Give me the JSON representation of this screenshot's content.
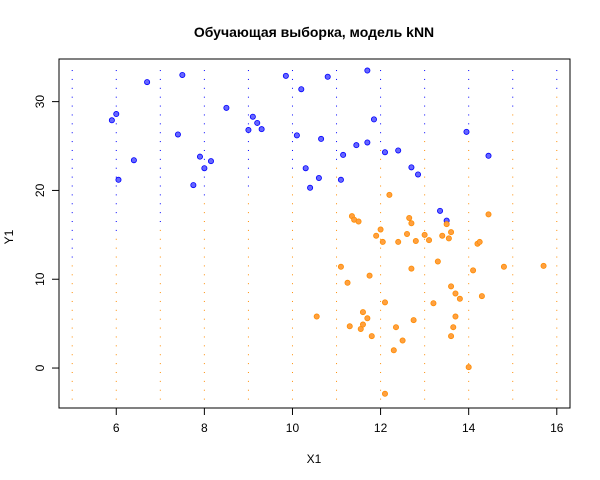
{
  "chart_data": {
    "type": "scatter",
    "title": "Обучающая выборка, модель kNN",
    "xlabel": "X1",
    "ylabel": "Y1",
    "xlim": [
      4.7,
      16.3
    ],
    "ylim": [
      -4.5,
      34.8
    ],
    "xticks": [
      6,
      8,
      10,
      12,
      14,
      16
    ],
    "yticks": [
      0,
      10,
      20,
      30
    ],
    "grid": false,
    "legend": "none",
    "colors": {
      "class_blue": "#0000ff",
      "class_orange": "#ff8c00",
      "point_blue_fill": "#6666ff",
      "point_orange_fill": "#ffa040",
      "frame": "#000000"
    },
    "background_grid": {
      "x": [
        5,
        6,
        7,
        8,
        9,
        10,
        11,
        12,
        13,
        14,
        15,
        16
      ],
      "y_from": -3.5,
      "y_to": 34,
      "y_step": 1,
      "boundary": [
        {
          "x": 5,
          "y": 12
        },
        {
          "x": 6,
          "y": 15
        },
        {
          "x": 7,
          "y": 16
        },
        {
          "x": 8,
          "y": 19
        },
        {
          "x": 9,
          "y": 20
        },
        {
          "x": 10,
          "y": 22
        },
        {
          "x": 11,
          "y": 23
        },
        {
          "x": 12,
          "y": 25
        },
        {
          "x": 13,
          "y": 26
        },
        {
          "x": 14,
          "y": 27
        },
        {
          "x": 15,
          "y": 29
        },
        {
          "x": 16,
          "y": 31
        }
      ]
    },
    "series": [
      {
        "color": "#0000ff",
        "points": [
          [
            5.9,
            27.9
          ],
          [
            6.0,
            28.6
          ],
          [
            6.05,
            21.2
          ],
          [
            6.4,
            23.4
          ],
          [
            6.7,
            32.2
          ],
          [
            7.4,
            26.3
          ],
          [
            7.5,
            33.0
          ],
          [
            7.75,
            20.6
          ],
          [
            7.9,
            23.8
          ],
          [
            8.0,
            22.5
          ],
          [
            8.15,
            23.3
          ],
          [
            8.5,
            29.3
          ],
          [
            9.0,
            26.8
          ],
          [
            9.1,
            28.3
          ],
          [
            9.2,
            27.6
          ],
          [
            9.3,
            26.9
          ],
          [
            9.85,
            32.9
          ],
          [
            10.1,
            26.2
          ],
          [
            10.2,
            31.4
          ],
          [
            10.3,
            22.5
          ],
          [
            10.4,
            20.3
          ],
          [
            10.6,
            21.4
          ],
          [
            10.65,
            25.8
          ],
          [
            10.8,
            32.8
          ],
          [
            11.1,
            21.2
          ],
          [
            11.15,
            24.0
          ],
          [
            11.45,
            25.1
          ],
          [
            11.7,
            25.4
          ],
          [
            11.7,
            33.5
          ],
          [
            11.85,
            28.0
          ],
          [
            12.1,
            24.3
          ],
          [
            12.4,
            24.5
          ],
          [
            12.7,
            22.6
          ],
          [
            12.85,
            21.8
          ],
          [
            13.35,
            17.7
          ],
          [
            13.5,
            16.6
          ],
          [
            13.95,
            26.6
          ],
          [
            14.45,
            23.9
          ]
        ]
      },
      {
        "color": "#ff8c00",
        "points": [
          [
            10.55,
            5.8
          ],
          [
            11.1,
            11.4
          ],
          [
            11.25,
            9.6
          ],
          [
            11.3,
            4.7
          ],
          [
            11.35,
            17.1
          ],
          [
            11.4,
            16.7
          ],
          [
            11.5,
            16.5
          ],
          [
            11.55,
            4.4
          ],
          [
            11.6,
            4.9
          ],
          [
            11.6,
            6.3
          ],
          [
            11.7,
            5.6
          ],
          [
            11.75,
            10.4
          ],
          [
            11.8,
            3.6
          ],
          [
            11.9,
            14.9
          ],
          [
            12.0,
            15.6
          ],
          [
            12.05,
            14.2
          ],
          [
            12.1,
            7.4
          ],
          [
            12.1,
            -2.9
          ],
          [
            12.2,
            19.5
          ],
          [
            12.3,
            2.0
          ],
          [
            12.35,
            4.6
          ],
          [
            12.4,
            14.2
          ],
          [
            12.5,
            3.1
          ],
          [
            12.6,
            15.1
          ],
          [
            12.65,
            16.9
          ],
          [
            12.7,
            16.3
          ],
          [
            12.7,
            11.2
          ],
          [
            12.75,
            5.4
          ],
          [
            12.8,
            14.3
          ],
          [
            13.0,
            15.0
          ],
          [
            13.1,
            14.4
          ],
          [
            13.2,
            7.3
          ],
          [
            13.3,
            12.0
          ],
          [
            13.4,
            14.9
          ],
          [
            13.5,
            16.2
          ],
          [
            13.55,
            14.6
          ],
          [
            13.6,
            15.3
          ],
          [
            13.6,
            9.2
          ],
          [
            13.6,
            3.6
          ],
          [
            13.65,
            4.6
          ],
          [
            13.7,
            8.4
          ],
          [
            13.7,
            5.8
          ],
          [
            13.8,
            7.8
          ],
          [
            14.0,
            0.1
          ],
          [
            14.1,
            11.0
          ],
          [
            14.2,
            14.0
          ],
          [
            14.25,
            14.2
          ],
          [
            14.3,
            8.1
          ],
          [
            14.45,
            17.3
          ],
          [
            14.8,
            11.4
          ],
          [
            15.7,
            11.5
          ]
        ]
      }
    ]
  }
}
